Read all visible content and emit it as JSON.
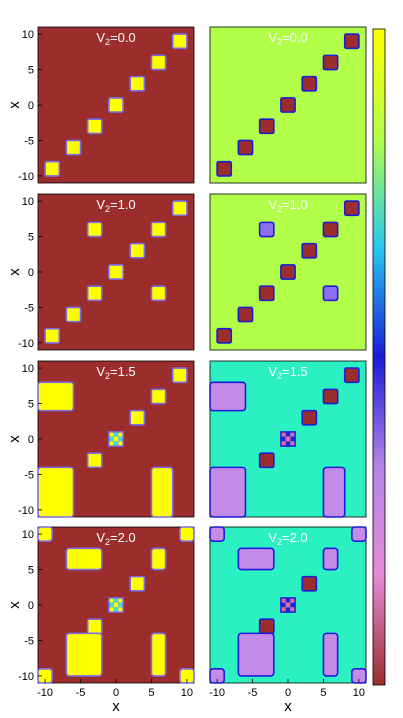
{
  "chart_data": [
    {
      "type": "heatmap",
      "layout": "4 rows x 2 columns of density maps over (x, x')",
      "xlabel": "x",
      "ylabel": "x",
      "x_ticks": [
        "-10",
        "-5",
        "0",
        "5",
        "10"
      ],
      "y_ticks": [
        "10",
        "5",
        "0",
        "-5",
        "-10"
      ],
      "xlim": [
        -11,
        11
      ],
      "ylim": [
        -11,
        11
      ],
      "colormaps": {
        "left": [
          "#9b2d2d",
          "#ffff00"
        ],
        "right": [
          "#9b2d2d",
          "#e68ad7",
          "#b484e8",
          "#1b1bd8",
          "#27c8ef",
          "#b2ff49",
          "#ffff00"
        ]
      },
      "colorbar": {
        "stops": [
          "#9b2d2d",
          "#e68ad7",
          "#b484e8",
          "#1b1bd8",
          "#27c8ef",
          "#b2ff49",
          "#ffff00"
        ]
      },
      "panels": [
        {
          "row": 0,
          "title": "V2=0.0",
          "left": {
            "bg": "#9b2d2d",
            "fg": "#ffff00"
          },
          "right": {
            "bg": "#b2ff49",
            "fg": "#9b2d2d"
          },
          "blocks": [
            [
              -10,
              -8,
              -10,
              -8
            ],
            [
              -7,
              -5,
              -7,
              -5
            ],
            [
              -4,
              -2,
              -4,
              -2
            ],
            [
              -1,
              1,
              -1,
              1
            ],
            [
              2,
              4,
              2,
              4
            ],
            [
              5,
              7,
              5,
              7
            ],
            [
              8,
              10,
              8,
              10
            ]
          ]
        },
        {
          "row": 1,
          "title": "V2=1.0",
          "left": {
            "bg": "#9b2d2d",
            "fg": "#ffff00"
          },
          "right": {
            "bg": "#b2ff49",
            "fg": "#9b2d2d"
          },
          "blocks": [
            [
              -10,
              -8,
              -10,
              -8
            ],
            [
              -7,
              -5,
              -7,
              -5
            ],
            [
              -4,
              -2,
              -4,
              -2
            ],
            [
              -1,
              1,
              -1,
              1
            ],
            [
              2,
              4,
              2,
              4
            ],
            [
              5,
              7,
              5,
              7
            ],
            [
              8,
              10,
              8,
              10
            ]
          ],
          "offdiag": [
            [
              -4,
              -2,
              5,
              7
            ],
            [
              5,
              7,
              -4,
              -2
            ]
          ]
        },
        {
          "row": 2,
          "title": "V2=1.5",
          "left": {
            "bg": "#9b2d2d",
            "fg": "#ffff00"
          },
          "right": {
            "bg": "#2af0c2",
            "fg": "#9b2d2d"
          },
          "blocks": [
            [
              -4,
              -2,
              -4,
              -2
            ],
            [
              2,
              4,
              2,
              4
            ],
            [
              5,
              7,
              5,
              7
            ],
            [
              8,
              10,
              8,
              10
            ]
          ],
          "big": [
            [
              -11,
              -6,
              -11,
              -4
            ],
            [
              -11,
              -6,
              4,
              8
            ],
            [
              5,
              8,
              -11,
              -4
            ]
          ],
          "checker": [
            -1,
            1,
            -1,
            1
          ]
        },
        {
          "row": 3,
          "title": "V2=2.0",
          "left": {
            "bg": "#9b2d2d",
            "fg": "#ffff00"
          },
          "right": {
            "bg": "#2af0c2",
            "fg": "#9b2d2d"
          },
          "blocks": [
            [
              -4,
              -2,
              -4,
              -2
            ],
            [
              2,
              4,
              2,
              4
            ]
          ],
          "big": [
            [
              -7,
              -2,
              -10,
              -4
            ],
            [
              5,
              7,
              -10,
              -4
            ],
            [
              -7,
              -2,
              5,
              8
            ],
            [
              5,
              7,
              5,
              8
            ],
            [
              -11,
              -9,
              -11,
              -9
            ],
            [
              9,
              11,
              9,
              11
            ],
            [
              -11,
              -9,
              9,
              11
            ],
            [
              9,
              11,
              -11,
              -9
            ]
          ],
          "checker": [
            -1,
            1,
            -1,
            1
          ]
        }
      ]
    }
  ]
}
